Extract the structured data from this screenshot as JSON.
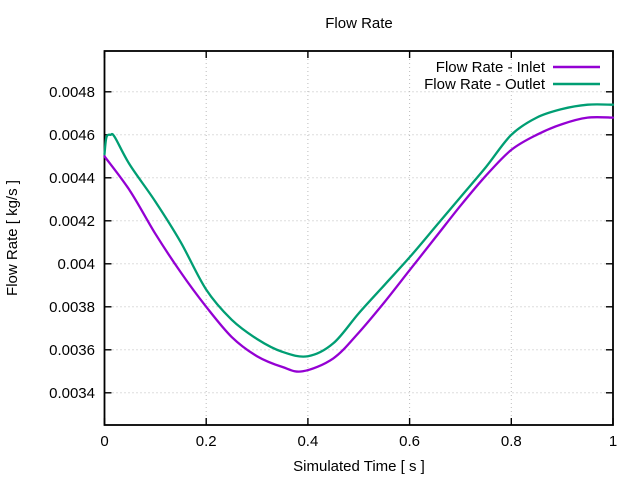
{
  "chart_data": {
    "type": "line",
    "title": "Flow Rate",
    "xlabel": "Simulated Time [ s ]",
    "ylabel": "Flow Rate [ kg/s ]",
    "xlim": [
      0,
      1
    ],
    "ylim": [
      0.00325,
      0.00499
    ],
    "xticks": [
      0,
      0.2,
      0.4,
      0.6,
      0.8,
      1
    ],
    "xtick_labels": [
      "0",
      "0.2",
      "0.4",
      "0.6",
      "0.8",
      "1"
    ],
    "yticks": [
      0.0034,
      0.0036,
      0.0038,
      0.004,
      0.0042,
      0.0044,
      0.0046,
      0.0048
    ],
    "ytick_labels": [
      "0.0034",
      "0.0036",
      "0.0038",
      "0.004",
      "0.0042",
      "0.0044",
      "0.0046",
      "0.0048"
    ],
    "grid": true,
    "grid_style": "dotted",
    "legend_position": "top-right-inside",
    "background": "#ffffff",
    "axis_color": "#000000",
    "series": [
      {
        "name": "Flow Rate - Inlet",
        "color": "#9400d3",
        "x": [
          0,
          0.05,
          0.1,
          0.15,
          0.2,
          0.25,
          0.3,
          0.35,
          0.39,
          0.45,
          0.5,
          0.55,
          0.6,
          0.65,
          0.7,
          0.75,
          0.8,
          0.85,
          0.9,
          0.95,
          1.0
        ],
        "y": [
          0.0045,
          0.00434,
          0.00414,
          0.00396,
          0.0038,
          0.00366,
          0.00357,
          0.00352,
          0.0035,
          0.00356,
          0.00368,
          0.00382,
          0.00397,
          0.00412,
          0.00427,
          0.00441,
          0.00453,
          0.0046,
          0.00465,
          0.00468,
          0.00468
        ]
      },
      {
        "name": "Flow Rate - Outlet",
        "color": "#009e73",
        "x": [
          0,
          0.004,
          0.012,
          0.02,
          0.05,
          0.1,
          0.15,
          0.2,
          0.25,
          0.3,
          0.35,
          0.4,
          0.45,
          0.5,
          0.55,
          0.6,
          0.65,
          0.7,
          0.75,
          0.8,
          0.85,
          0.9,
          0.95,
          1.0
        ],
        "y": [
          0.00451,
          0.00459,
          0.0046,
          0.00459,
          0.00446,
          0.00429,
          0.0041,
          0.00388,
          0.00374,
          0.00365,
          0.00359,
          0.00357,
          0.00363,
          0.00377,
          0.0039,
          0.00403,
          0.00417,
          0.00431,
          0.00445,
          0.0046,
          0.00468,
          0.00472,
          0.00474,
          0.00474
        ]
      }
    ]
  }
}
